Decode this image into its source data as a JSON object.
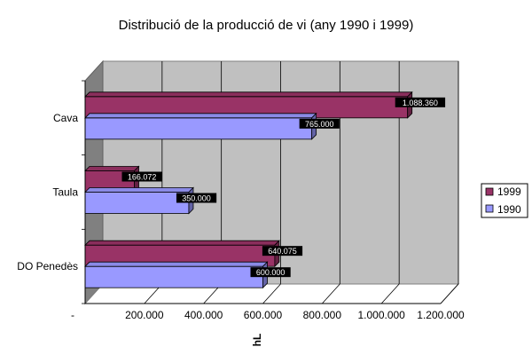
{
  "chart_data": {
    "type": "bar",
    "orientation": "horizontal",
    "style": "3d",
    "title": "Distribució de la producció de vi (any 1990 i 1999)",
    "xlabel": "hL",
    "ylabel": "",
    "xlim": [
      0,
      1200000
    ],
    "x_tick_labels": [
      "-",
      "200.000",
      "400.000",
      "600.000",
      "800.000",
      "1.000.000",
      "1.200.000"
    ],
    "categories": [
      "Cava",
      "Taula",
      "DO Penedès"
    ],
    "series": [
      {
        "name": "1999",
        "values": [
          1088360,
          166072,
          640075
        ],
        "data_labels": [
          "1.088.360",
          "166.072",
          "640.075"
        ],
        "color": "#993366"
      },
      {
        "name": "1990",
        "values": [
          765000,
          350000,
          600000
        ],
        "data_labels": [
          "765.000",
          "350.000",
          "600.000"
        ],
        "color": "#9999ff"
      }
    ],
    "grid": true,
    "legend_position": "right",
    "wall_color": "#c0c0c0"
  }
}
